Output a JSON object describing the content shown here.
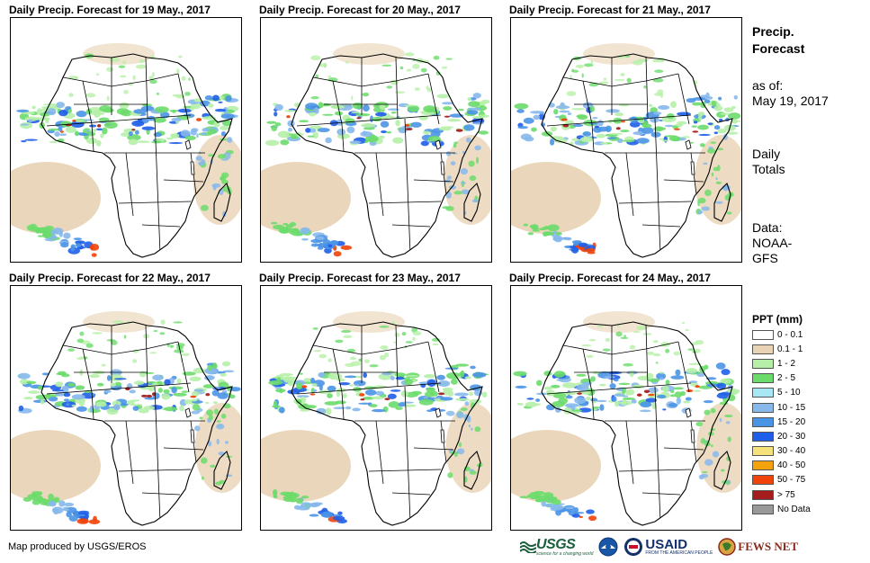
{
  "panels": [
    {
      "title": "Daily Precip. Forecast for 19 May., 2017"
    },
    {
      "title": "Daily Precip. Forecast for 20 May., 2017"
    },
    {
      "title": "Daily Precip. Forecast for 21 May., 2017"
    },
    {
      "title": "Daily Precip. Forecast for 22 May., 2017"
    },
    {
      "title": "Daily Precip. Forecast for 23 May., 2017"
    },
    {
      "title": "Daily Precip. Forecast for 24 May., 2017"
    }
  ],
  "sidebar": {
    "title_line1": "Precip.",
    "title_line2": "Forecast",
    "asof_label": "as of:",
    "asof_date": "May 19, 2017",
    "totals_line1": "Daily",
    "totals_line2": "Totals",
    "data_label": "Data:",
    "data_line1": "NOAA-",
    "data_line2": "GFS"
  },
  "legend": {
    "title": "PPT (mm)",
    "items": [
      {
        "label": "0 - 0.1",
        "color": "#ffffff"
      },
      {
        "label": "0.1 - 1",
        "color": "#e8d3b4"
      },
      {
        "label": "1 - 2",
        "color": "#b6f0a8"
      },
      {
        "label": "2 - 5",
        "color": "#6bdc6b"
      },
      {
        "label": "5 - 10",
        "color": "#a8e8f4"
      },
      {
        "label": "10 - 15",
        "color": "#86b8ec"
      },
      {
        "label": "15 - 20",
        "color": "#4a94e6"
      },
      {
        "label": "20 - 30",
        "color": "#1f5ee8"
      },
      {
        "label": "30 - 40",
        "color": "#f6e27a"
      },
      {
        "label": "40 - 50",
        "color": "#f4a20c"
      },
      {
        "label": "50 - 75",
        "color": "#f0440a"
      },
      {
        "label": "> 75",
        "color": "#a51c1c"
      },
      {
        "label": "No Data",
        "color": "#999999"
      }
    ]
  },
  "footer": {
    "credit": "Map produced by USGS/EROS",
    "logos": {
      "usgs": "USGS",
      "usgs_tagline": "science for a changing world",
      "usaid": "USAID",
      "usaid_tagline": "FROM THE AMERICAN PEOPLE",
      "fews": "FEWS NET"
    }
  }
}
